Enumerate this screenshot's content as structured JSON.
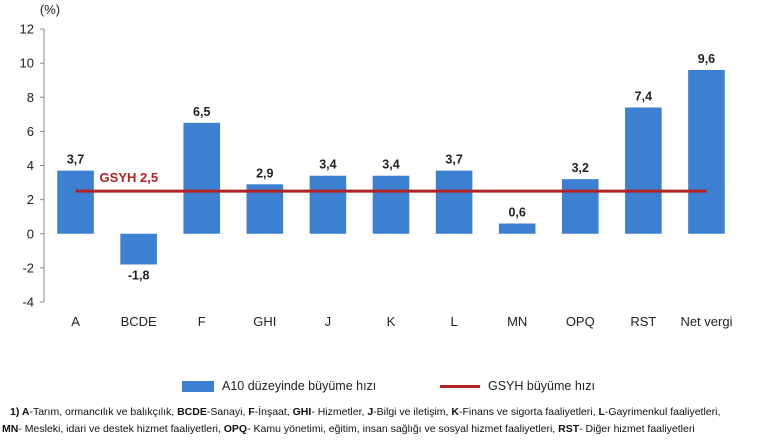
{
  "chart_data": {
    "type": "bar",
    "unit_label": "(%)",
    "categories": [
      "A",
      "BCDE",
      "F",
      "GHI",
      "J",
      "K",
      "L",
      "MN",
      "OPQ",
      "RST",
      "Net vergi"
    ],
    "series": [
      {
        "name": "A10 düzeyinde büyüme hızı",
        "values": [
          3.7,
          -1.8,
          6.5,
          2.9,
          3.4,
          3.4,
          3.7,
          0.6,
          3.2,
          7.4,
          9.6
        ],
        "labels": [
          "3,7",
          "-1,8",
          "6,5",
          "2,9",
          "3,4",
          "3,4",
          "3,7",
          "0,6",
          "3,2",
          "7,4",
          "9,6"
        ],
        "color": "#3d7fd1"
      }
    ],
    "reference_line": {
      "name": "GSYH büyüme hızı",
      "value": 2.5,
      "label": "GSYH 2,5",
      "color": "#b22222"
    },
    "ylim": [
      -4,
      12
    ],
    "yticks": [
      -4,
      -2,
      0,
      2,
      4,
      6,
      8,
      10,
      12
    ],
    "grid": false,
    "legend_position": "bottom"
  },
  "legend": {
    "bar_label": "A10 düzeyinde büyüme hızı",
    "line_label": "GSYH büyüme hızı"
  },
  "footnote": {
    "line1": [
      {
        "b": "1) A",
        "t": "-Tarım, ormancılık ve balıkçılık, "
      },
      {
        "b": "BCDE",
        "t": "-Sanayi, "
      },
      {
        "b": "F",
        "t": "-İnşaat, "
      },
      {
        "b": "GHI",
        "t": "- Hizmetler, "
      },
      {
        "b": "J",
        "t": "-Bilgi ve iletişim, "
      },
      {
        "b": "K",
        "t": "-Finans ve sigorta faaliyetleri, "
      },
      {
        "b": "L",
        "t": "-Gayrimenkul faaliyetleri,"
      }
    ],
    "line2": [
      {
        "b": "MN",
        "t": "- Mesleki, idari ve destek hizmet faaliyetleri, "
      },
      {
        "b": "OPQ",
        "t": "- Kamu yönetimi, eğitim, insan sağlığı ve sosyal hizmet faaliyetleri, "
      },
      {
        "b": "RST",
        "t": "- Diğer hizmet faaliyetleri"
      }
    ]
  }
}
